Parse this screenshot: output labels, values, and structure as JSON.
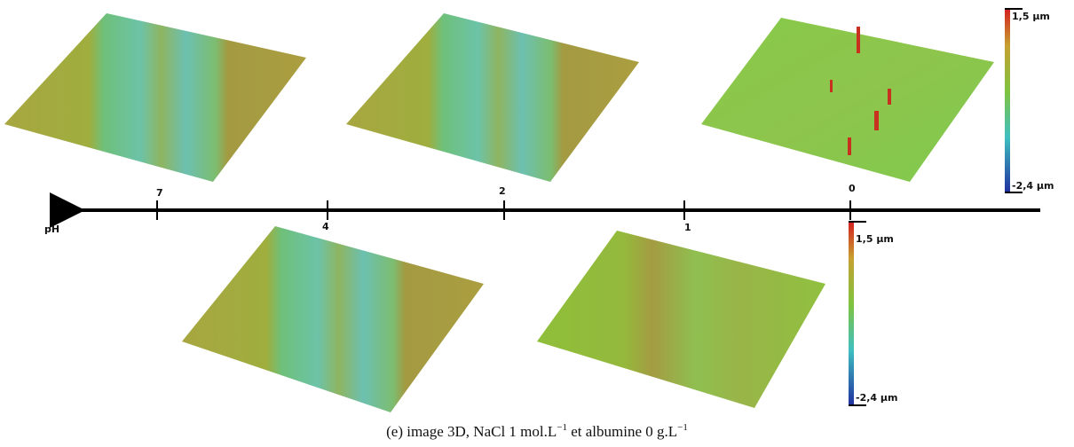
{
  "axis": {
    "label": "pH",
    "ticks": [
      "7",
      "4",
      "2",
      "1",
      "0"
    ]
  },
  "colorbars": [
    {
      "max": "1,5 µm",
      "min": "-2,4 µm"
    },
    {
      "max": "1,5 µm",
      "min": "-2,4 µm"
    }
  ],
  "caption": {
    "part1": "(e) image 3D, NaCl 1 mol.L",
    "sup1": "−1",
    "part2": " et albumine 0 g.L",
    "sup2": "−1"
  }
}
